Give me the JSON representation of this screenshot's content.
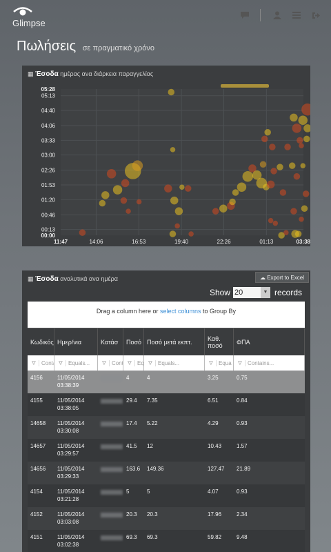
{
  "app": {
    "brand": "Glimpse"
  },
  "page": {
    "title": "Πωλήσεις",
    "subtitle": "σε πραγματικό χρόνο"
  },
  "chart_panel": {
    "title": "Έσοδα",
    "subtitle": "ημέρας ανα διάρκεια παραγγελίας"
  },
  "chart_data": {
    "type": "scatter",
    "y_ticks": [
      "05:28",
      "05:13",
      "04:40",
      "04:06",
      "03:33",
      "03:00",
      "02:26",
      "01:53",
      "01:20",
      "00:46",
      "00:13",
      "00:00"
    ],
    "x_ticks": [
      "11:47",
      "14:06",
      "16:53",
      "19:40",
      "22:26",
      "01:13",
      "03:38"
    ],
    "xlim_label": [
      "11:47",
      "03:38"
    ],
    "ylim_label": [
      "00:00",
      "05:28"
    ],
    "grid": true,
    "points": [
      {
        "x": 13.2,
        "y": 0.1,
        "r": 4,
        "c": "#d24a1f"
      },
      {
        "x": 16.5,
        "y": 2.4,
        "r": 11,
        "c": "#e8c020"
      },
      {
        "x": 16.8,
        "y": 2.6,
        "r": 7,
        "c": "#d89a20"
      },
      {
        "x": 15.1,
        "y": 2.3,
        "r": 6,
        "c": "#d24a1f"
      },
      {
        "x": 16.0,
        "y": 1.95,
        "r": 5,
        "c": "#d24a1f"
      },
      {
        "x": 15.5,
        "y": 1.7,
        "r": 6,
        "c": "#e8c020"
      },
      {
        "x": 14.7,
        "y": 1.5,
        "r": 5,
        "c": "#e8c020"
      },
      {
        "x": 14.5,
        "y": 1.2,
        "r": 4,
        "c": "#e8c020"
      },
      {
        "x": 15.9,
        "y": 1.3,
        "r": 4,
        "c": "#d24a1f"
      },
      {
        "x": 16.2,
        "y": 0.9,
        "r": 3,
        "c": "#d24a1f"
      },
      {
        "x": 16.9,
        "y": 1.25,
        "r": 3,
        "c": "#d24a1f"
      },
      {
        "x": 18.8,
        "y": 1.75,
        "r": 5,
        "c": "#d24a1f"
      },
      {
        "x": 19.2,
        "y": 1.3,
        "r": 5,
        "c": "#e8c020"
      },
      {
        "x": 19.5,
        "y": 0.9,
        "r": 5,
        "c": "#e8c020"
      },
      {
        "x": 19.7,
        "y": 1.8,
        "r": 3,
        "c": "#e8c020"
      },
      {
        "x": 20.1,
        "y": 1.75,
        "r": 4,
        "c": "#d24a1f"
      },
      {
        "x": 19.4,
        "y": 0.35,
        "r": 3,
        "c": "#d24a1f"
      },
      {
        "x": 19.1,
        "y": 0.05,
        "r": 4,
        "c": "#e8c020"
      },
      {
        "x": 20.3,
        "y": 0.05,
        "r": 3,
        "c": "#d24a1f"
      },
      {
        "x": 19.1,
        "y": 3.2,
        "r": 3,
        "c": "#e8c020"
      },
      {
        "x": 19.0,
        "y": 5.35,
        "r": 4,
        "c": "#e8c020"
      },
      {
        "x": 21.9,
        "y": 0.9,
        "r": 4,
        "c": "#d24a1f"
      },
      {
        "x": 22.4,
        "y": 1.0,
        "r": 5,
        "c": "#e8c020"
      },
      {
        "x": 22.9,
        "y": 1.1,
        "r": 5,
        "c": "#d24a1f"
      },
      {
        "x": 23.0,
        "y": 1.25,
        "r": 4,
        "c": "#e8c020"
      },
      {
        "x": 23.2,
        "y": 1.6,
        "r": 4,
        "c": "#e8c020"
      },
      {
        "x": 23.6,
        "y": 1.8,
        "r": 6,
        "c": "#e8c020"
      },
      {
        "x": 24.0,
        "y": 2.2,
        "r": 7,
        "c": "#e8c020"
      },
      {
        "x": 24.3,
        "y": 2.5,
        "r": 5,
        "c": "#d24a1f"
      },
      {
        "x": 24.6,
        "y": 2.25,
        "r": 6,
        "c": "#e8c020"
      },
      {
        "x": 24.9,
        "y": 1.95,
        "r": 7,
        "c": "#e8c020"
      },
      {
        "x": 25.0,
        "y": 2.65,
        "r": 4,
        "c": "#d89a20"
      },
      {
        "x": 25.2,
        "y": 1.8,
        "r": 4,
        "c": "#e8c020"
      },
      {
        "x": 25.5,
        "y": 1.9,
        "r": 5,
        "c": "#d24a1f"
      },
      {
        "x": 25.1,
        "y": 3.6,
        "r": 4,
        "c": "#d24a1f"
      },
      {
        "x": 25.3,
        "y": 3.85,
        "r": 4,
        "c": "#e8c020"
      },
      {
        "x": 25.6,
        "y": 3.3,
        "r": 4,
        "c": "#d24a1f"
      },
      {
        "x": 25.7,
        "y": 2.4,
        "r": 4,
        "c": "#d24a1f"
      },
      {
        "x": 26.1,
        "y": 2.55,
        "r": 4,
        "c": "#e8c020"
      },
      {
        "x": 26.3,
        "y": 1.6,
        "r": 4,
        "c": "#d24a1f"
      },
      {
        "x": 26.6,
        "y": 3.3,
        "r": 4,
        "c": "#d24a1f"
      },
      {
        "x": 26.9,
        "y": 2.6,
        "r": 4,
        "c": "#e8c020"
      },
      {
        "x": 27.0,
        "y": 4.4,
        "r": 5,
        "c": "#e8c020"
      },
      {
        "x": 27.2,
        "y": 4.0,
        "r": 6,
        "c": "#d24a1f"
      },
      {
        "x": 27.6,
        "y": 4.3,
        "r": 6,
        "c": "#e8c020"
      },
      {
        "x": 27.9,
        "y": 4.0,
        "r": 5,
        "c": "#e8c020"
      },
      {
        "x": 27.4,
        "y": 3.55,
        "r": 4,
        "c": "#d24a1f"
      },
      {
        "x": 27.5,
        "y": 3.35,
        "r": 3,
        "c": "#d24a1f"
      },
      {
        "x": 27.2,
        "y": 2.2,
        "r": 4,
        "c": "#d24a1f"
      },
      {
        "x": 27.0,
        "y": 0.9,
        "r": 4,
        "c": "#d24a1f"
      },
      {
        "x": 27.6,
        "y": 2.6,
        "r": 3,
        "c": "#e8c020"
      },
      {
        "x": 26.2,
        "y": 0.0,
        "r": 4,
        "c": "#e8c020"
      },
      {
        "x": 25.5,
        "y": 0.55,
        "r": 3,
        "c": "#d24a1f"
      },
      {
        "x": 25.8,
        "y": 0.45,
        "r": 3,
        "c": "#d24a1f"
      },
      {
        "x": 26.5,
        "y": 0.1,
        "r": 3,
        "c": "#d24a1f"
      },
      {
        "x": 27.1,
        "y": 0.05,
        "r": 5,
        "c": "#e8c020"
      },
      {
        "x": 27.3,
        "y": 0.05,
        "r": 4,
        "c": "#e8c020"
      },
      {
        "x": 27.9,
        "y": 4.7,
        "r": 8,
        "c": "#d24a1f"
      },
      {
        "x": 27.85,
        "y": 3.6,
        "r": 4,
        "c": "#e8c020"
      },
      {
        "x": 27.8,
        "y": 1.55,
        "r": 4,
        "c": "#d24a1f"
      },
      {
        "x": 27.7,
        "y": 1.0,
        "r": 4,
        "c": "#e8c020"
      },
      {
        "x": 27.5,
        "y": 0.6,
        "r": 3,
        "c": "#d24a1f"
      }
    ]
  },
  "table_panel": {
    "title": "Έσοδα",
    "subtitle": "αναλυτικά ανα ημέρα",
    "export_label": "Export to Excel",
    "show_label": "Show",
    "show_value": "20",
    "records_label": "records",
    "groupby_text": "Drag a column here or",
    "groupby_link": "select columns",
    "groupby_tail": "to Group By",
    "columns": [
      "Κωδικός",
      "Ημερ/νια",
      "Κατάσ",
      "Ποσό",
      "Ποσό μετά εκπτ.",
      "Καθ. ποσό",
      "ΦΠΑ"
    ],
    "filters": [
      "Conta",
      "Equals...",
      "Conta",
      "Equals",
      "Equals...",
      "Equa",
      "Contains..."
    ],
    "rows": [
      {
        "id": "4156",
        "date": "11/05/2014",
        "time": "03:38:39",
        "amount": "4",
        "disc": "4",
        "net": "3.25",
        "vat": "0.75"
      },
      {
        "id": "4155",
        "date": "11/05/2014",
        "time": "03:38:05",
        "amount": "29.4",
        "disc": "7.35",
        "net": "6.51",
        "vat": "0.84"
      },
      {
        "id": "14658",
        "date": "11/05/2014",
        "time": "03:30:08",
        "amount": "17.4",
        "disc": "5.22",
        "net": "4.29",
        "vat": "0.93"
      },
      {
        "id": "14657",
        "date": "11/05/2014",
        "time": "03:29:57",
        "amount": "41.5",
        "disc": "12",
        "net": "10.43",
        "vat": "1.57"
      },
      {
        "id": "14656",
        "date": "11/05/2014",
        "time": "03:29:33",
        "amount": "163.6",
        "disc": "149.36",
        "net": "127.47",
        "vat": "21.89"
      },
      {
        "id": "4154",
        "date": "11/05/2014",
        "time": "03:21:28",
        "amount": "5",
        "disc": "5",
        "net": "4.07",
        "vat": "0.93"
      },
      {
        "id": "4152",
        "date": "11/05/2014",
        "time": "03:03:08",
        "amount": "20.3",
        "disc": "20.3",
        "net": "17.96",
        "vat": "2.34"
      },
      {
        "id": "4151",
        "date": "11/05/2014",
        "time": "03:02:38",
        "amount": "69.3",
        "disc": "69.3",
        "net": "59.82",
        "vat": "9.48"
      }
    ]
  }
}
